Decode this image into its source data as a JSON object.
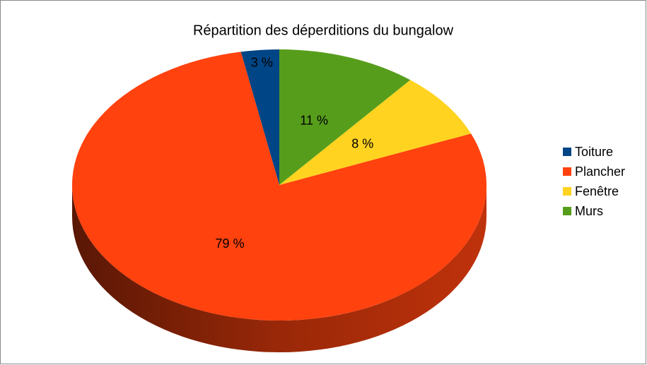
{
  "chart_data": {
    "type": "pie3d",
    "title": "Répartition des déperditions du bungalow",
    "categories": [
      "Toiture",
      "Plancher",
      "Fenêtre",
      "Murs"
    ],
    "values": [
      3,
      79,
      8,
      11
    ],
    "value_labels": [
      "3 %",
      "79 %",
      "8 %",
      "11 %"
    ],
    "colors": [
      "#004586",
      "#ff420e",
      "#ffd320",
      "#579d1c"
    ],
    "legend": "right"
  }
}
